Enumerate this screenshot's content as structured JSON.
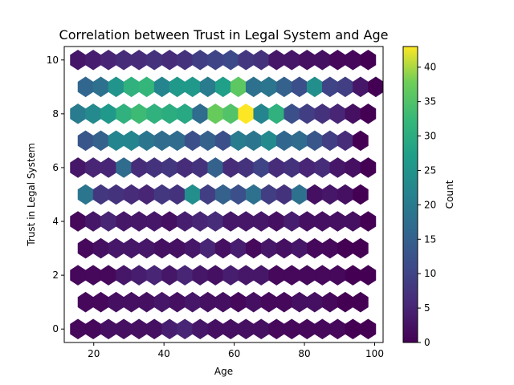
{
  "chart_data": {
    "type": "heatmap",
    "subtype": "hexbin",
    "title": "Correlation between Trust in Legal System and Age",
    "xlabel": "Age",
    "ylabel": "Trust in Legal System",
    "xlim": [
      11.6,
      102.4
    ],
    "ylim": [
      -0.5,
      10.5
    ],
    "xticks": [
      20,
      40,
      60,
      80,
      100
    ],
    "yticks": [
      0,
      2,
      4,
      6,
      8,
      10
    ],
    "colormap": "viridis",
    "colorbar": {
      "label": "Count",
      "min": 0,
      "max": 43,
      "ticks": [
        0,
        5,
        10,
        15,
        20,
        25,
        30,
        35,
        40
      ]
    },
    "grid": false,
    "hex_grid": {
      "x_centers_even_rows": [
        15.5,
        19.85,
        24.2,
        28.55,
        32.9,
        37.25,
        41.6,
        45.95,
        50.3,
        54.65,
        59.0,
        63.35,
        67.7,
        72.05,
        76.4,
        80.75,
        85.1,
        89.45,
        93.8,
        98.15
      ],
      "y_centers": [
        0,
        1,
        2,
        3,
        4,
        5,
        6,
        7,
        8,
        9,
        10
      ],
      "odd_row_x_offset": 2.175
    },
    "counts": [
      [
        1,
        1,
        2,
        2,
        2,
        2,
        4,
        5,
        3,
        2,
        2,
        2,
        2,
        1,
        1,
        1,
        1,
        1,
        0,
        0
      ],
      [
        1,
        1,
        2,
        2,
        2,
        3,
        2,
        3,
        2,
        2,
        1,
        2,
        1,
        1,
        2,
        2,
        1,
        0,
        0
      ],
      [
        1,
        1,
        1,
        3,
        4,
        5,
        3,
        5,
        3,
        2,
        4,
        3,
        3,
        1,
        1,
        1,
        1,
        1,
        0,
        0
      ],
      [
        1,
        2,
        3,
        3,
        3,
        2,
        2,
        3,
        5,
        2,
        4,
        1,
        3,
        2,
        3,
        1,
        1,
        0,
        0
      ],
      [
        1,
        3,
        5,
        3,
        3,
        3,
        2,
        4,
        5,
        6,
        3,
        3,
        3,
        2,
        4,
        2,
        2,
        2,
        2,
        0
      ],
      [
        19,
        8,
        7,
        6,
        5,
        8,
        7,
        24,
        9,
        15,
        12,
        18,
        9,
        7,
        18,
        2,
        3,
        2,
        0
      ],
      [
        3,
        5,
        5,
        17,
        6,
        7,
        8,
        6,
        7,
        15,
        6,
        7,
        10,
        6,
        7,
        5,
        6,
        3,
        2,
        0
      ],
      [
        13,
        15,
        22,
        22,
        19,
        17,
        17,
        12,
        15,
        12,
        20,
        19,
        23,
        16,
        17,
        13,
        9,
        6,
        0
      ],
      [
        20,
        23,
        26,
        31,
        33,
        31,
        30,
        29,
        17,
        37,
        35,
        43,
        22,
        31,
        12,
        9,
        7,
        5,
        2,
        0
      ],
      [
        16,
        18,
        25,
        31,
        32,
        22,
        26,
        26,
        20,
        27,
        36,
        18,
        19,
        15,
        12,
        24,
        10,
        9,
        3,
        0
      ],
      [
        3,
        4,
        5,
        6,
        6,
        7,
        6,
        7,
        9,
        10,
        11,
        8,
        7,
        3,
        3,
        2,
        2,
        1,
        1,
        0
      ]
    ]
  }
}
